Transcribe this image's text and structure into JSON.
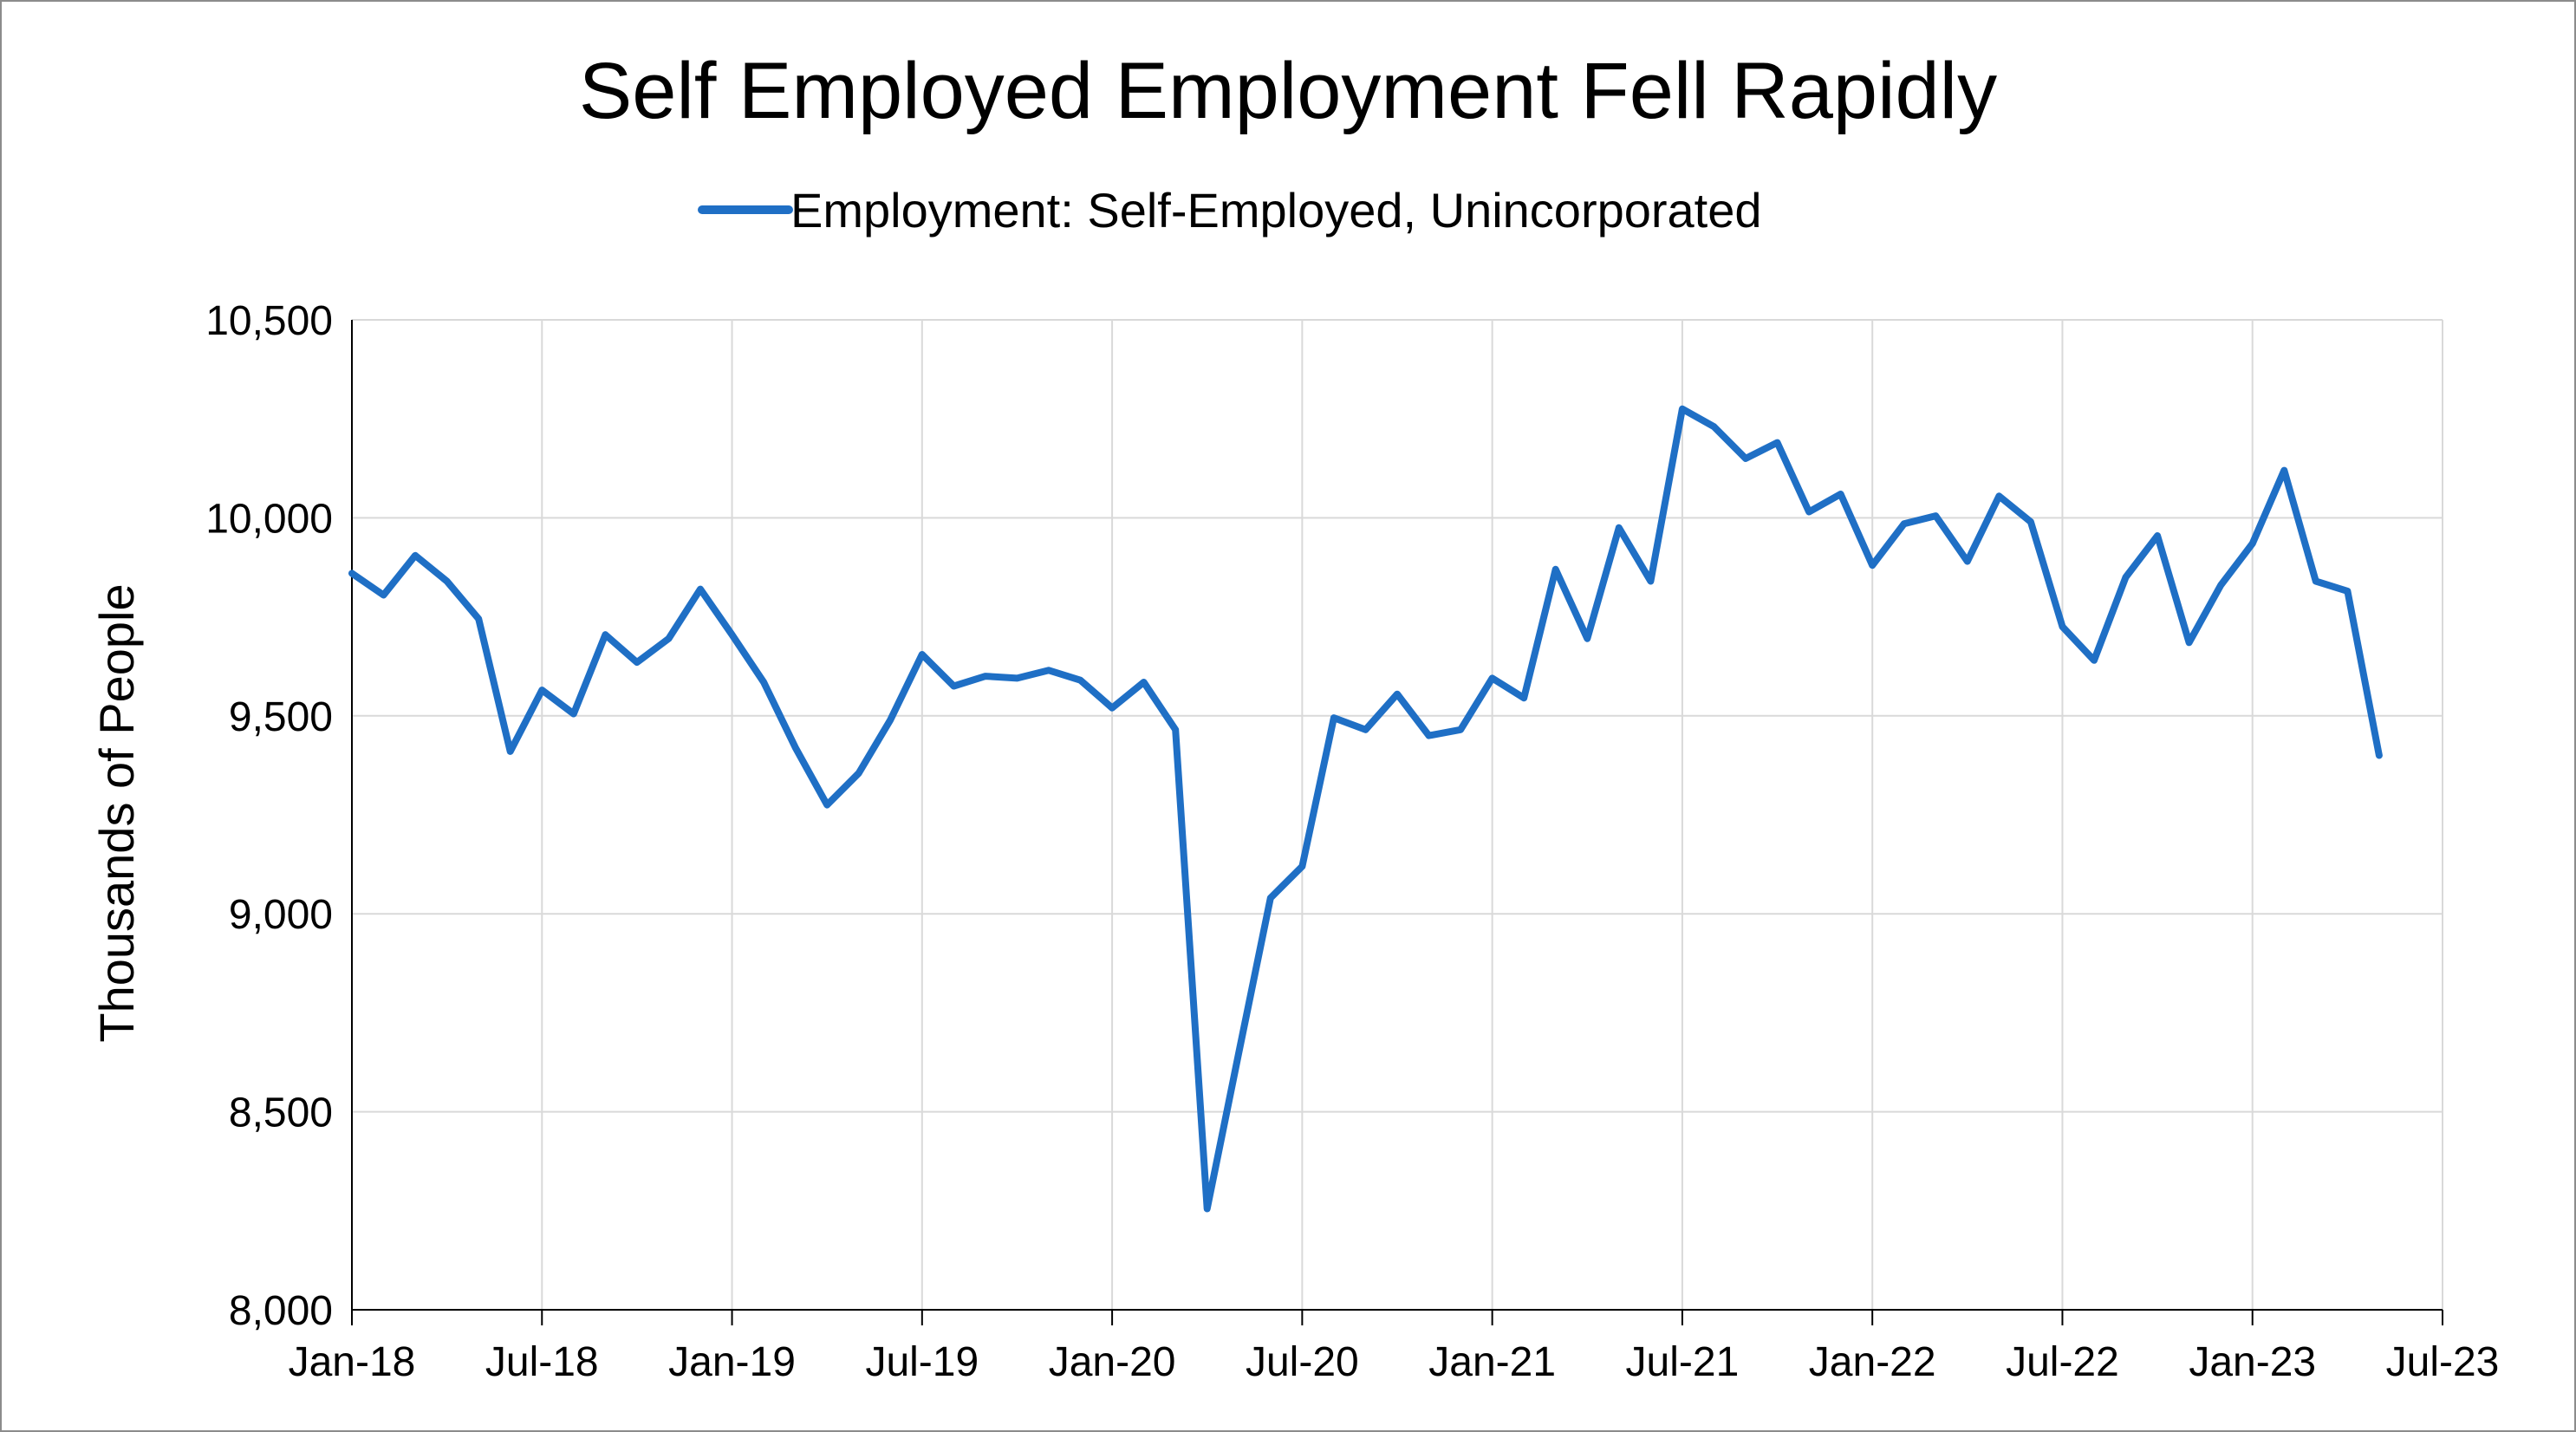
{
  "chart_data": {
    "type": "line",
    "title": "Self Employed Employment Fell Rapidly",
    "ylabel": "Thousands of People",
    "xlabel": "",
    "ylim": [
      8000,
      10500
    ],
    "grid": true,
    "legend_position": "top-center",
    "x_tick_labels": [
      "Jan-18",
      "Jul-18",
      "Jan-19",
      "Jul-19",
      "Jan-20",
      "Jul-20",
      "Jan-21",
      "Jul-21",
      "Jan-22",
      "Jul-22",
      "Jan-23",
      "Jul-23"
    ],
    "y_tick_labels": [
      "8,000",
      "8,500",
      "9,000",
      "9,500",
      "10,000",
      "10,500"
    ],
    "y_tick_values": [
      8000,
      8500,
      9000,
      9500,
      10000,
      10500
    ],
    "series": [
      {
        "name": "Employment: Self-Employed, Unincorporated",
        "color": "#1f6fc5",
        "x": [
          "2018-01",
          "2018-02",
          "2018-03",
          "2018-04",
          "2018-05",
          "2018-06",
          "2018-07",
          "2018-08",
          "2018-09",
          "2018-10",
          "2018-11",
          "2018-12",
          "2019-01",
          "2019-02",
          "2019-03",
          "2019-04",
          "2019-05",
          "2019-06",
          "2019-07",
          "2019-08",
          "2019-09",
          "2019-10",
          "2019-11",
          "2019-12",
          "2020-01",
          "2020-02",
          "2020-03",
          "2020-04",
          "2020-05",
          "2020-06",
          "2020-07",
          "2020-08",
          "2020-09",
          "2020-10",
          "2020-11",
          "2020-12",
          "2021-01",
          "2021-02",
          "2021-03",
          "2021-04",
          "2021-05",
          "2021-06",
          "2021-07",
          "2021-08",
          "2021-09",
          "2021-10",
          "2021-11",
          "2021-12",
          "2022-01",
          "2022-02",
          "2022-03",
          "2022-04",
          "2022-05",
          "2022-06",
          "2022-07",
          "2022-08",
          "2022-09",
          "2022-10",
          "2022-11",
          "2022-12",
          "2023-01",
          "2023-02",
          "2023-03",
          "2023-04",
          "2023-05"
        ],
        "values": [
          9860,
          9805,
          9905,
          9840,
          9745,
          9410,
          9565,
          9505,
          9705,
          9635,
          9695,
          9820,
          9705,
          9585,
          9420,
          9275,
          9355,
          9490,
          9655,
          9575,
          9600,
          9595,
          9615,
          9590,
          9520,
          9585,
          9465,
          8255,
          8650,
          9040,
          9120,
          9495,
          9465,
          9555,
          9450,
          9465,
          9595,
          9545,
          9870,
          9695,
          9975,
          9840,
          10275,
          10230,
          10150,
          10190,
          10015,
          10060,
          9880,
          9985,
          10005,
          9890,
          10055,
          9990,
          9725,
          9640,
          9850,
          9955,
          9685,
          9830,
          9935,
          10120,
          9840,
          9815,
          9400
        ]
      }
    ]
  }
}
